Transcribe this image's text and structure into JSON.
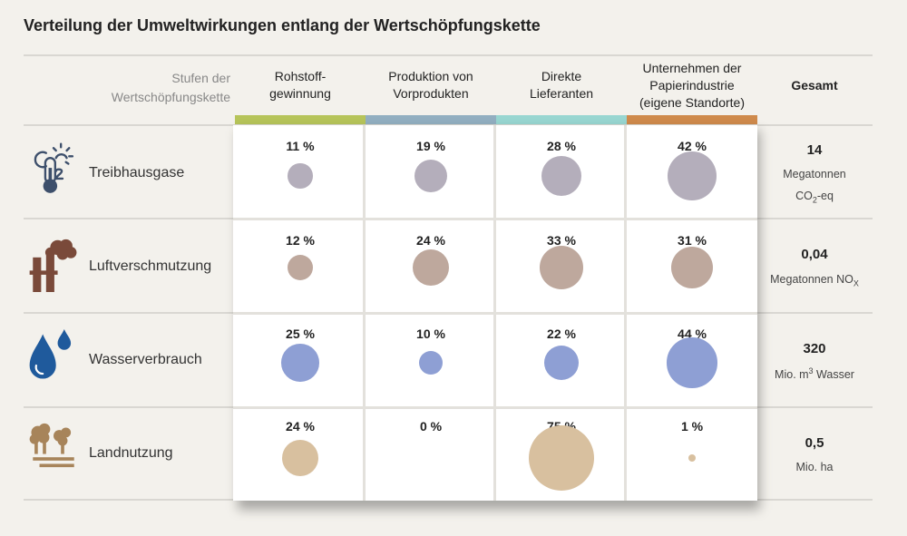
{
  "title": "Verteilung der Umweltwirkungen entlang der Wertschöpfungskette",
  "stage_label": "Stufen der\nWertschöpfungskette",
  "total_header": "Gesamt",
  "chart_data": {
    "type": "bubble-matrix",
    "columns": [
      {
        "label": "Rohstoff-\ngewinnung",
        "color": "#b6c45a"
      },
      {
        "label": "Produktion von\nVorprodukten",
        "color": "#92afc1"
      },
      {
        "label": "Direkte\nLieferanten",
        "color": "#98d6d1"
      },
      {
        "label": "Unternehmen der\nPapierindustrie\n(eigene Standorte)",
        "color": "#cf8a4c"
      }
    ],
    "rows": [
      {
        "label": "Treibhausgase",
        "icon": "co2-thermometer-icon",
        "color": "#b4aebb",
        "values": [
          11,
          19,
          28,
          42
        ],
        "value_labels": [
          "11 %",
          "19 %",
          "28 %",
          "42 %"
        ],
        "total_value": "14",
        "total_unit": "Megatonnen",
        "total_unit2_base": "CO",
        "total_unit2_sub": "2",
        "total_unit2_suffix": "-eq"
      },
      {
        "label": "Luftverschmutzung",
        "icon": "factory-smoke-icon",
        "color": "#bea89d",
        "values": [
          12,
          24,
          33,
          31
        ],
        "value_labels": [
          "12 %",
          "24 %",
          "33 %",
          "31 %"
        ],
        "total_value": "0,04",
        "total_unit_base": "Megatonnen NO",
        "total_unit_sub": "X"
      },
      {
        "label": "Wasserverbrauch",
        "icon": "water-drops-icon",
        "color": "#8e9fd4",
        "values": [
          25,
          10,
          22,
          44
        ],
        "value_labels": [
          "25 %",
          "10 %",
          "22 %",
          "44 %"
        ],
        "total_value": "320",
        "total_unit_base": "Mio. m",
        "total_unit_sup": "3",
        "total_unit_suffix": " Wasser"
      },
      {
        "label": "Landnutzung",
        "icon": "trees-land-icon",
        "color": "#d8c09f",
        "values": [
          24,
          0,
          75,
          1
        ],
        "value_labels": [
          "24 %",
          "0 %",
          "75 %",
          "1 %"
        ],
        "total_value": "0,5",
        "total_unit": "Mio. ha"
      }
    ]
  }
}
